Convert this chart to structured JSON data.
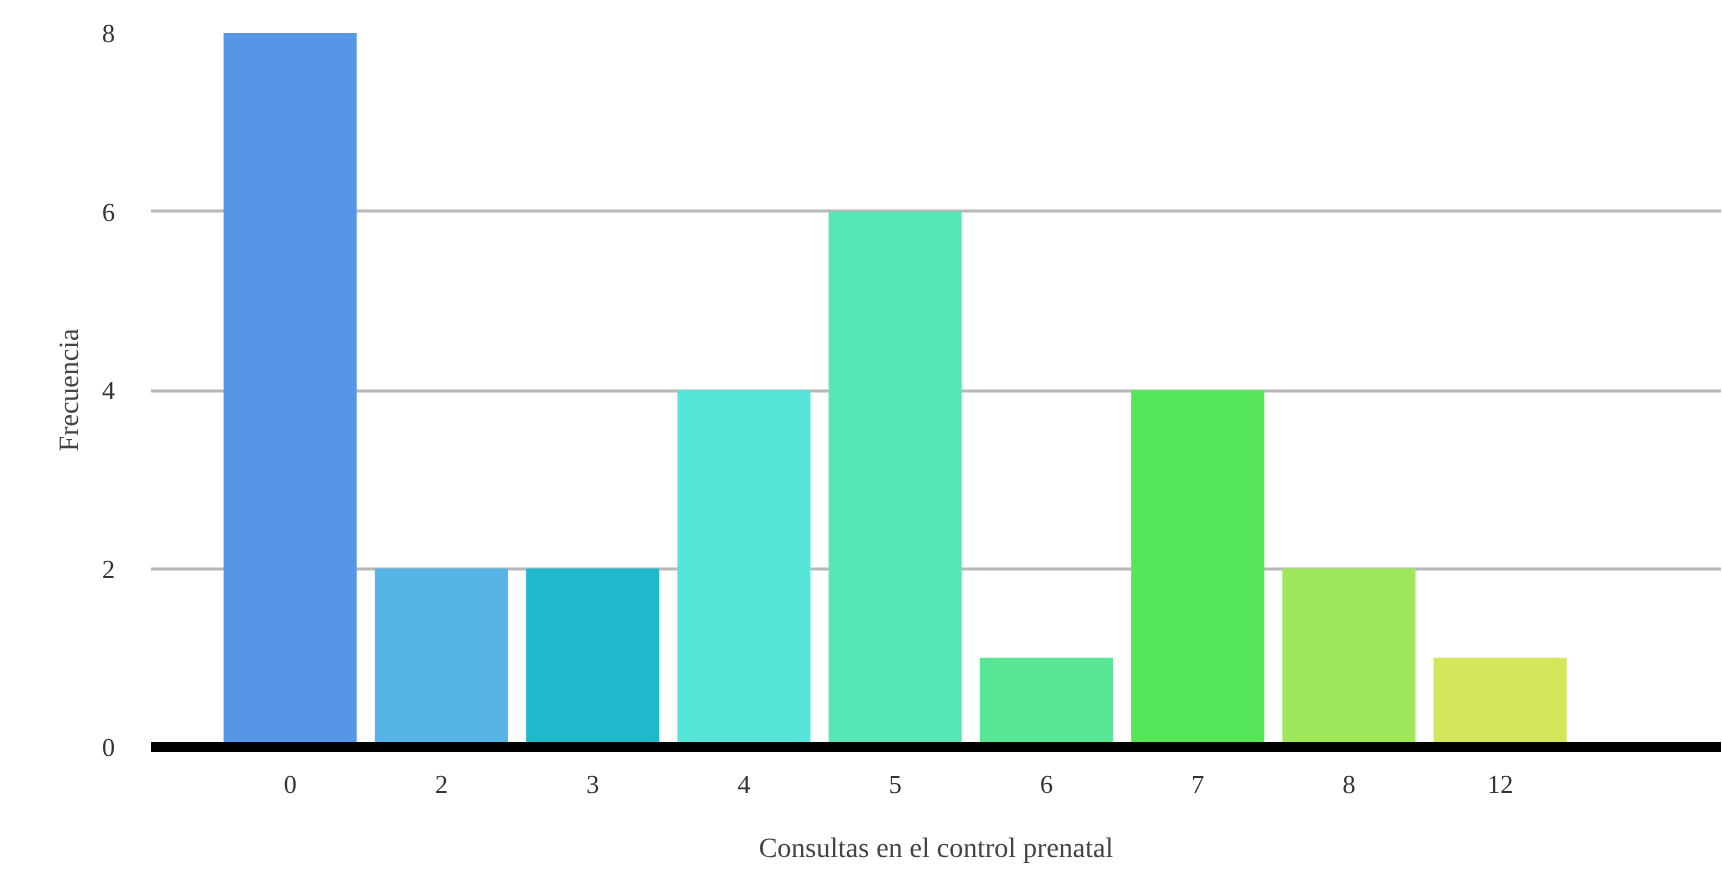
{
  "chart_data": {
    "type": "bar",
    "xlabel": "Consultas en el control prenatal",
    "ylabel": "Frecuencia",
    "categories": [
      "0",
      "2",
      "3",
      "4",
      "5",
      "6",
      "7",
      "8",
      "12"
    ],
    "values": [
      8,
      2,
      2,
      4,
      6,
      1,
      4,
      2,
      1
    ],
    "colors": [
      "#5596e6",
      "#56b4e6",
      "#20b9cc",
      "#56e6d8",
      "#56e6b8",
      "#56e696",
      "#56e65a",
      "#9ee65a",
      "#d4e65a"
    ],
    "ylim": [
      0,
      8
    ],
    "yticks": [
      0,
      2,
      4,
      6,
      8
    ],
    "grid": "y"
  }
}
